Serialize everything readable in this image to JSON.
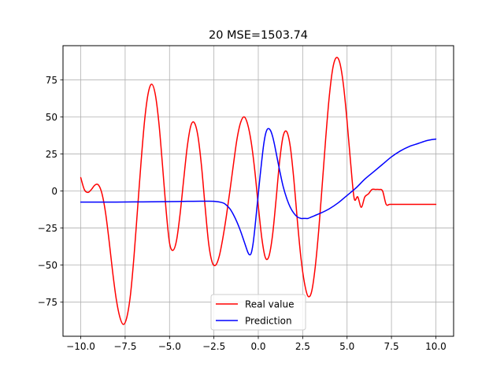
{
  "chart_data": {
    "type": "line",
    "title": "20 MSE=1503.74",
    "xlabel": "",
    "ylabel": "",
    "xlim": [
      -11.0,
      11.0
    ],
    "ylim": [
      -98.0,
      98.0
    ],
    "grid": true,
    "legend_position": "lower-center",
    "x_ticks": [
      -10.0,
      -7.5,
      -5.0,
      -2.5,
      0.0,
      2.5,
      5.0,
      7.5,
      10.0
    ],
    "x_tick_labels": [
      "−10.0",
      "−7.5",
      "−5.0",
      "−2.5",
      "0.0",
      "2.5",
      "5.0",
      "7.5",
      "10.0"
    ],
    "y_ticks": [
      -75,
      -50,
      -25,
      0,
      25,
      50,
      75
    ],
    "y_tick_labels": [
      "−75",
      "−50",
      "−25",
      "0",
      "25",
      "50",
      "75"
    ],
    "series": [
      {
        "name": "Real value",
        "color": "#ff0000",
        "x": [
          -10.0,
          -9.8,
          -9.6,
          -9.4,
          -9.2,
          -9.0,
          -8.8,
          -8.6,
          -8.4,
          -8.2,
          -8.0,
          -7.8,
          -7.6,
          -7.4,
          -7.2,
          -7.0,
          -6.8,
          -6.6,
          -6.4,
          -6.2,
          -6.0,
          -5.8,
          -5.6,
          -5.4,
          -5.2,
          -5.0,
          -4.8,
          -4.6,
          -4.4,
          -4.2,
          -4.0,
          -3.8,
          -3.6,
          -3.4,
          -3.2,
          -3.0,
          -2.8,
          -2.6,
          -2.4,
          -2.2,
          -2.0,
          -1.8,
          -1.6,
          -1.4,
          -1.2,
          -1.0,
          -0.8,
          -0.6,
          -0.4,
          -0.2,
          0.0,
          0.2,
          0.4,
          0.6,
          0.8,
          1.0,
          1.2,
          1.4,
          1.6,
          1.8,
          2.0,
          2.2,
          2.4,
          2.6,
          2.8,
          3.0,
          3.2,
          3.4,
          3.6,
          3.8,
          4.0,
          4.2,
          4.4,
          4.6,
          4.8,
          5.0,
          5.2,
          5.4,
          5.6,
          5.8,
          6.0,
          6.2,
          6.4,
          6.6,
          6.8,
          7.0,
          7.2,
          7.4,
          7.6,
          7.8,
          8.0,
          8.2,
          8.4,
          8.6,
          8.8,
          9.0,
          9.2,
          9.4,
          9.6,
          9.8,
          10.0
        ],
        "y": [
          9,
          1,
          -1,
          1,
          4,
          4,
          -2,
          -15,
          -34,
          -55,
          -73,
          -85,
          -90,
          -85,
          -70,
          -44,
          -12,
          20,
          48,
          66,
          72,
          65,
          46,
          18,
          -12,
          -35,
          -40,
          -33,
          -15,
          8,
          30,
          44,
          46,
          37,
          17,
          -10,
          -35,
          -48,
          -50,
          -44,
          -32,
          -17,
          0,
          18,
          35,
          46,
          50,
          45,
          33,
          14,
          -10,
          -32,
          -45,
          -44,
          -30,
          -6,
          20,
          37,
          40,
          30,
          8,
          -20,
          -45,
          -62,
          -71,
          -68,
          -52,
          -27,
          4,
          36,
          64,
          83,
          90,
          86,
          71,
          47,
          19,
          -5,
          -4,
          -11,
          -4,
          -2,
          1,
          1,
          1,
          0,
          -9,
          -9,
          -9,
          -9,
          -9,
          -9,
          -9,
          -9,
          -9,
          -9,
          -9,
          -9,
          -9,
          -9,
          -9
        ]
      },
      {
        "name": "Prediction",
        "color": "#0000ff",
        "x": [
          -10.0,
          -9.0,
          -8.0,
          -7.0,
          -6.0,
          -5.0,
          -4.0,
          -3.0,
          -2.5,
          -2.0,
          -1.8,
          -1.6,
          -1.4,
          -1.2,
          -1.0,
          -0.8,
          -0.6,
          -0.5,
          -0.4,
          -0.3,
          -0.2,
          -0.1,
          0.0,
          0.1,
          0.2,
          0.3,
          0.4,
          0.5,
          0.6,
          0.7,
          0.8,
          0.9,
          1.0,
          1.2,
          1.4,
          1.6,
          1.8,
          2.0,
          2.2,
          2.4,
          2.6,
          2.8,
          3.0,
          3.5,
          4.0,
          4.5,
          5.0,
          5.5,
          6.0,
          6.5,
          7.0,
          7.5,
          8.0,
          8.5,
          9.0,
          9.5,
          10.0
        ],
        "y": [
          -7.5,
          -7.5,
          -7.5,
          -7.4,
          -7.3,
          -7.2,
          -7.0,
          -6.9,
          -7.0,
          -8.0,
          -9.5,
          -12,
          -16,
          -21,
          -27,
          -34,
          -41,
          -43,
          -42,
          -36,
          -26,
          -14,
          -2,
          10,
          21,
          31,
          38,
          41.5,
          42,
          40.5,
          37,
          32,
          26,
          14,
          3,
          -5,
          -11,
          -15,
          -17.5,
          -18.5,
          -18.5,
          -18.5,
          -17.5,
          -15,
          -12,
          -8,
          -3,
          2,
          8,
          13,
          18,
          23,
          27,
          30,
          32,
          34,
          35
        ]
      }
    ]
  }
}
